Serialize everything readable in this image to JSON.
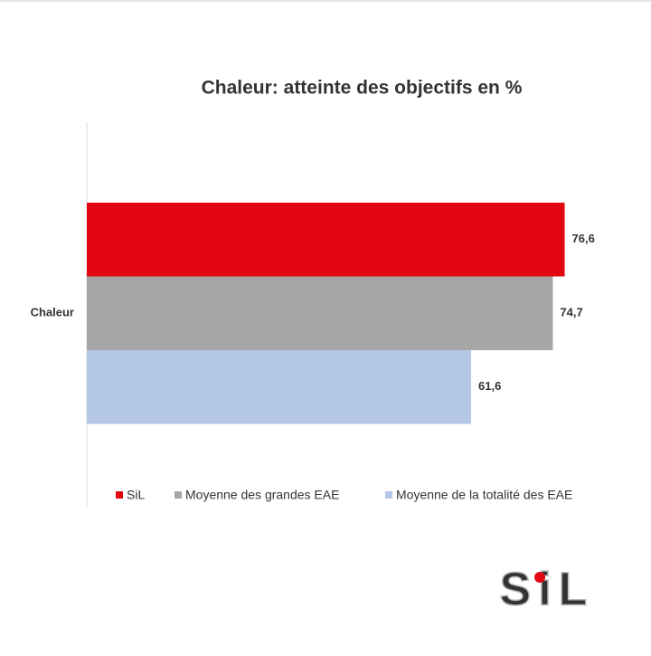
{
  "chart_data": {
    "type": "bar",
    "orientation": "horizontal",
    "title": "Chaleur: atteinte des objectifs en %",
    "categories": [
      "Chaleur"
    ],
    "series": [
      {
        "name": "SiL",
        "color": "#e30613",
        "values": [
          76.6
        ],
        "value_labels": [
          "76,6"
        ]
      },
      {
        "name": "Moyenne des grandes EAE",
        "color": "#a6a6a6",
        "values": [
          74.7
        ],
        "value_labels": [
          "74,7"
        ]
      },
      {
        "name": "Moyenne de la totalité des EAE",
        "color": "#b4c7e7",
        "values": [
          61.6
        ],
        "value_labels": [
          "61,6"
        ]
      }
    ],
    "xlim": [
      0,
      80
    ],
    "legend": "bottom"
  },
  "logo": "SiL"
}
